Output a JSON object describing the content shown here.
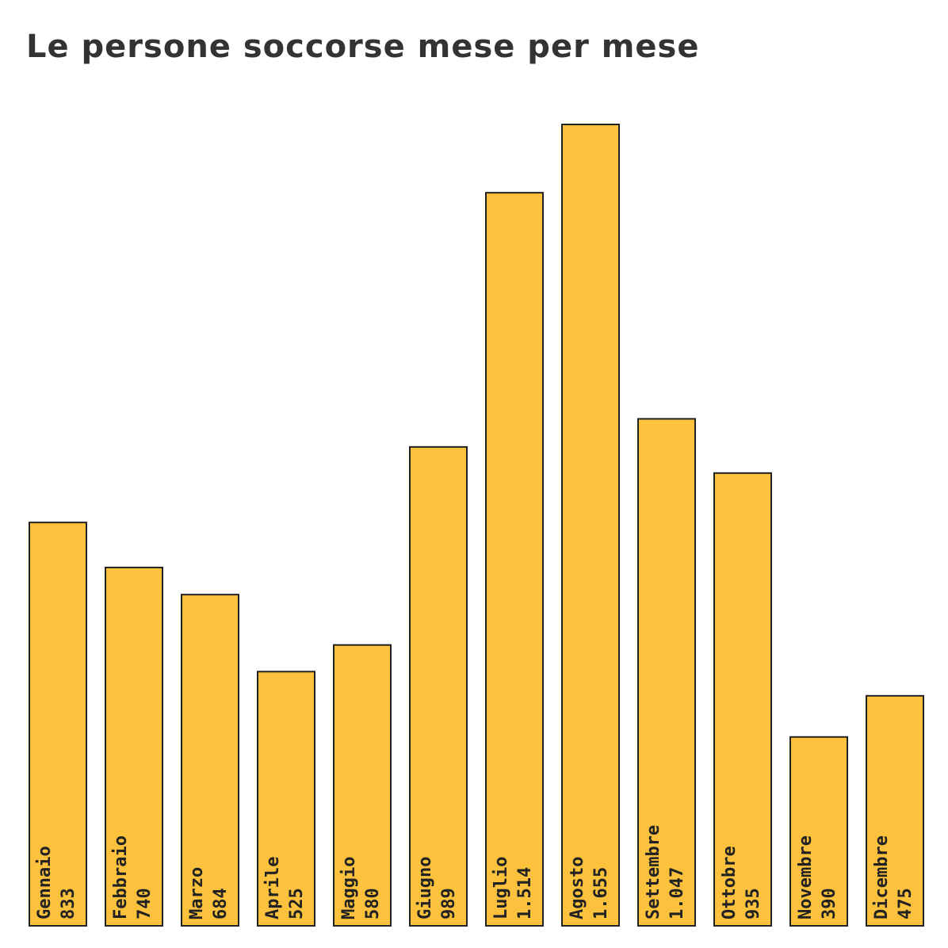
{
  "chart_data": {
    "type": "bar",
    "title": "Le persone soccorse mese per mese",
    "categories": [
      "Gennaio",
      "Febbraio",
      "Marzo",
      "Aprile",
      "Maggio",
      "Giugno",
      "Luglio",
      "Agosto",
      "Settembre",
      "Ottobre",
      "Novembre",
      "Dicembre"
    ],
    "values": [
      833,
      740,
      684,
      525,
      580,
      989,
      1514,
      1655,
      1047,
      935,
      390,
      475
    ],
    "value_labels": [
      "833",
      "740",
      "684",
      "525",
      "580",
      "989",
      "1.514",
      "1.655",
      "1.047",
      "935",
      "390",
      "475"
    ],
    "color": "#fcc23d"
  }
}
